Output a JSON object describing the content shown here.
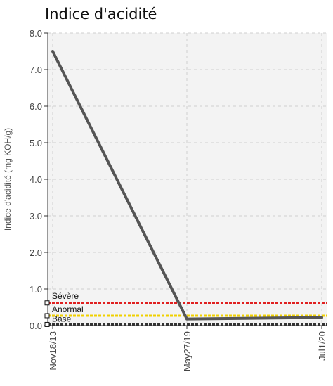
{
  "chart_data": {
    "type": "line",
    "title": "Indice d'acidité",
    "ylabel": "Indice d'acidité (mg KOH/g)",
    "xlabel": "",
    "categories": [
      "Nov18/13",
      "May27/19",
      "Jul1/20"
    ],
    "yticks": [
      "0.0",
      "1.0",
      "2.0",
      "3.0",
      "4.0",
      "5.0",
      "6.0",
      "7.0",
      "8.0"
    ],
    "ylim": [
      0,
      8
    ],
    "grid": true,
    "series": [
      {
        "values": [
          7.5,
          0.18,
          0.22
        ],
        "color": "#555555"
      }
    ],
    "thresholds": [
      {
        "label": "Sévère",
        "value": 0.62,
        "color": "#e02020"
      },
      {
        "label": "Anormal",
        "value": 0.27,
        "color": "#f0d000"
      },
      {
        "label": "Base",
        "value": 0.03,
        "color": "#333333"
      }
    ]
  }
}
